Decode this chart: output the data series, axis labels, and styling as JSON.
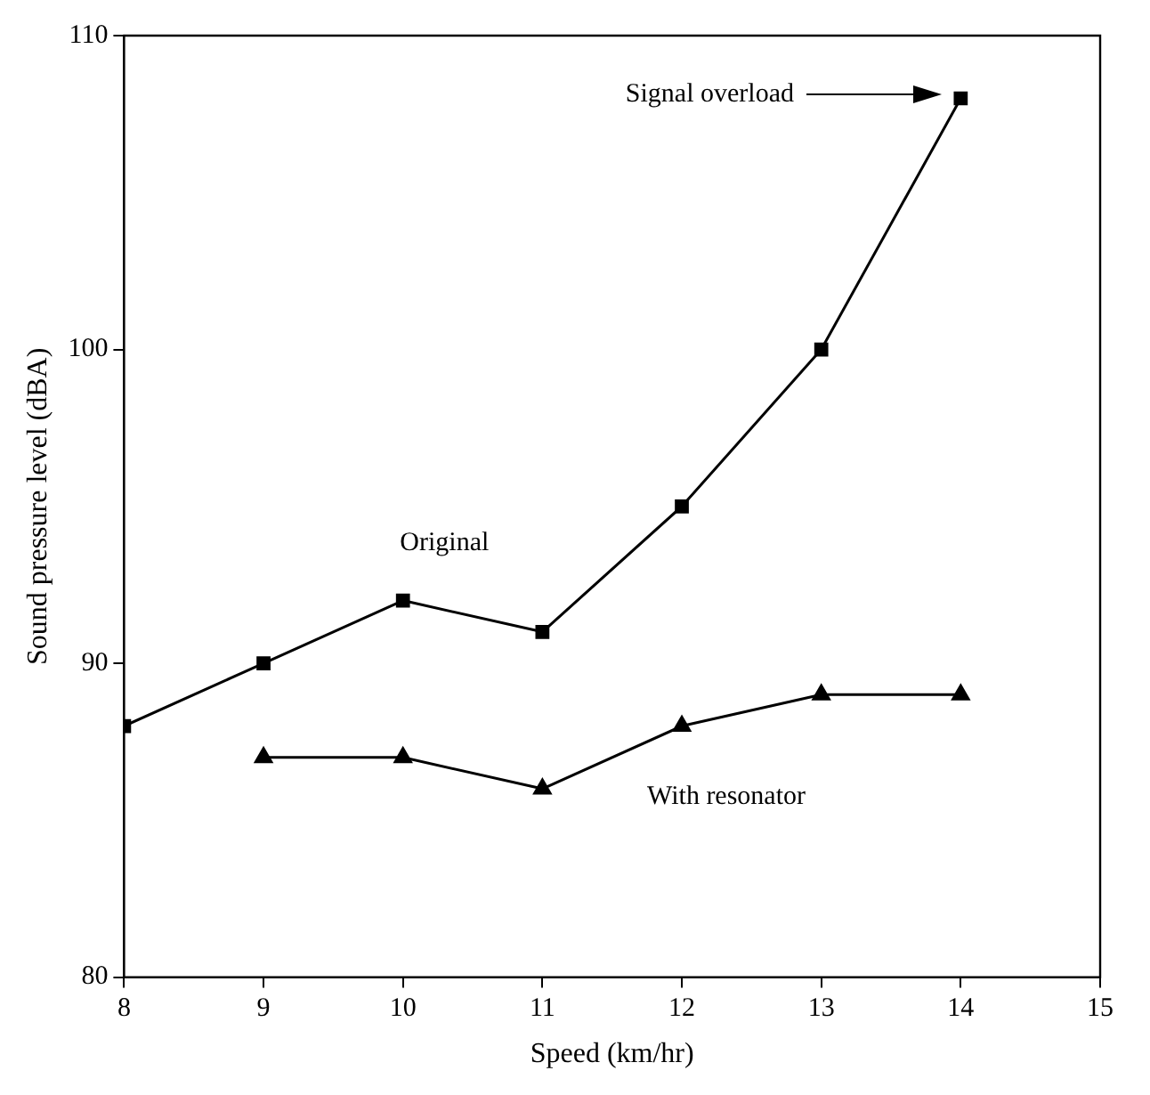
{
  "chart_data": {
    "type": "line",
    "xlabel": "Speed (km/hr)",
    "ylabel": "Sound pressure level (dBA)",
    "xlim": [
      8,
      15
    ],
    "xticks": [
      8,
      9,
      10,
      11,
      12,
      13,
      14,
      15
    ],
    "ylim": [
      80,
      110
    ],
    "yticks": [
      80,
      90,
      100,
      110
    ],
    "grid": false,
    "legend": false,
    "series": [
      {
        "name": "Original",
        "color": "#000000",
        "marker": "square",
        "x": [
          8,
          9,
          10,
          11,
          12,
          13,
          14
        ],
        "values": [
          88,
          90,
          92,
          91,
          95,
          100,
          108
        ]
      },
      {
        "name": "With resonator",
        "color": "#000000",
        "marker": "triangle",
        "x": [
          9,
          10,
          11,
          12,
          13,
          14
        ],
        "values": [
          87,
          87,
          86,
          88,
          89,
          89
        ]
      }
    ],
    "annotations": [
      "Signal overload"
    ]
  }
}
